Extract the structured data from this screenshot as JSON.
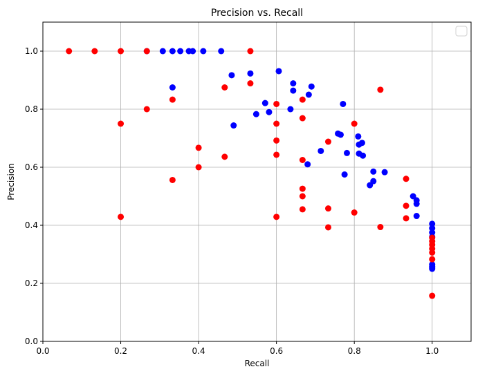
{
  "chart_data": {
    "type": "scatter",
    "title": "Precision vs. Recall",
    "xlabel": "Recall",
    "ylabel": "Precision",
    "xlim": [
      0.0,
      1.1
    ],
    "ylim": [
      0.0,
      1.1
    ],
    "xticks": [
      "0.0",
      "0.2",
      "0.4",
      "0.6",
      "0.8",
      "1.0"
    ],
    "yticks": [
      "0.0",
      "0.2",
      "0.4",
      "0.6",
      "0.8",
      "1.0"
    ],
    "grid": true,
    "legend": "upper-right (empty)",
    "series": [
      {
        "name": "blue",
        "color": "#0000ff",
        "points": [
          [
            0.267,
            1.0
          ],
          [
            0.308,
            1.0
          ],
          [
            0.333,
            1.0
          ],
          [
            0.353,
            1.0
          ],
          [
            0.375,
            1.0
          ],
          [
            0.385,
            1.0
          ],
          [
            0.412,
            1.0
          ],
          [
            0.458,
            1.0
          ],
          [
            0.333,
            0.875
          ],
          [
            0.485,
            0.917
          ],
          [
            0.533,
            0.923
          ],
          [
            0.606,
            0.931
          ],
          [
            0.643,
            0.889
          ],
          [
            0.643,
            0.864
          ],
          [
            0.69,
            0.878
          ],
          [
            0.683,
            0.85
          ],
          [
            0.636,
            0.8
          ],
          [
            0.571,
            0.821
          ],
          [
            0.581,
            0.79
          ],
          [
            0.548,
            0.783
          ],
          [
            0.49,
            0.744
          ],
          [
            0.771,
            0.818
          ],
          [
            0.758,
            0.716
          ],
          [
            0.765,
            0.712
          ],
          [
            0.81,
            0.706
          ],
          [
            0.82,
            0.684
          ],
          [
            0.812,
            0.678
          ],
          [
            0.714,
            0.656
          ],
          [
            0.781,
            0.649
          ],
          [
            0.812,
            0.647
          ],
          [
            0.822,
            0.64
          ],
          [
            0.68,
            0.61
          ],
          [
            0.775,
            0.575
          ],
          [
            0.849,
            0.585
          ],
          [
            0.878,
            0.583
          ],
          [
            0.84,
            0.538
          ],
          [
            0.849,
            0.552
          ],
          [
            0.951,
            0.5
          ],
          [
            0.96,
            0.486
          ],
          [
            0.96,
            0.474
          ],
          [
            0.96,
            0.432
          ],
          [
            1.0,
            0.405
          ],
          [
            1.0,
            0.39
          ],
          [
            1.0,
            0.375
          ],
          [
            1.0,
            0.36
          ],
          [
            1.0,
            0.265
          ],
          [
            1.0,
            0.258
          ],
          [
            1.0,
            0.25
          ],
          [
            1.0,
            0.255
          ]
        ]
      },
      {
        "name": "red",
        "color": "#ff0000",
        "points": [
          [
            0.067,
            1.0
          ],
          [
            0.133,
            1.0
          ],
          [
            0.2,
            1.0
          ],
          [
            0.267,
            1.0
          ],
          [
            0.533,
            1.0
          ],
          [
            0.533,
            0.889
          ],
          [
            0.467,
            0.875
          ],
          [
            0.867,
            0.867
          ],
          [
            0.333,
            0.833
          ],
          [
            0.667,
            0.833
          ],
          [
            0.6,
            0.818
          ],
          [
            0.267,
            0.8
          ],
          [
            0.2,
            0.75
          ],
          [
            0.6,
            0.75
          ],
          [
            0.8,
            0.75
          ],
          [
            0.667,
            0.769
          ],
          [
            0.6,
            0.692
          ],
          [
            0.733,
            0.688
          ],
          [
            0.4,
            0.667
          ],
          [
            0.467,
            0.636
          ],
          [
            0.6,
            0.643
          ],
          [
            0.667,
            0.625
          ],
          [
            0.4,
            0.6
          ],
          [
            0.333,
            0.556
          ],
          [
            0.933,
            0.56
          ],
          [
            0.667,
            0.526
          ],
          [
            0.667,
            0.5
          ],
          [
            0.933,
            0.467
          ],
          [
            0.733,
            0.458
          ],
          [
            0.667,
            0.455
          ],
          [
            0.8,
            0.444
          ],
          [
            0.2,
            0.429
          ],
          [
            0.6,
            0.429
          ],
          [
            0.933,
            0.424
          ],
          [
            0.733,
            0.393
          ],
          [
            0.867,
            0.394
          ],
          [
            1.0,
            0.357
          ],
          [
            1.0,
            0.345
          ],
          [
            1.0,
            0.333
          ],
          [
            1.0,
            0.319
          ],
          [
            1.0,
            0.306
          ],
          [
            1.0,
            0.283
          ],
          [
            1.0,
            0.157
          ]
        ]
      }
    ]
  }
}
